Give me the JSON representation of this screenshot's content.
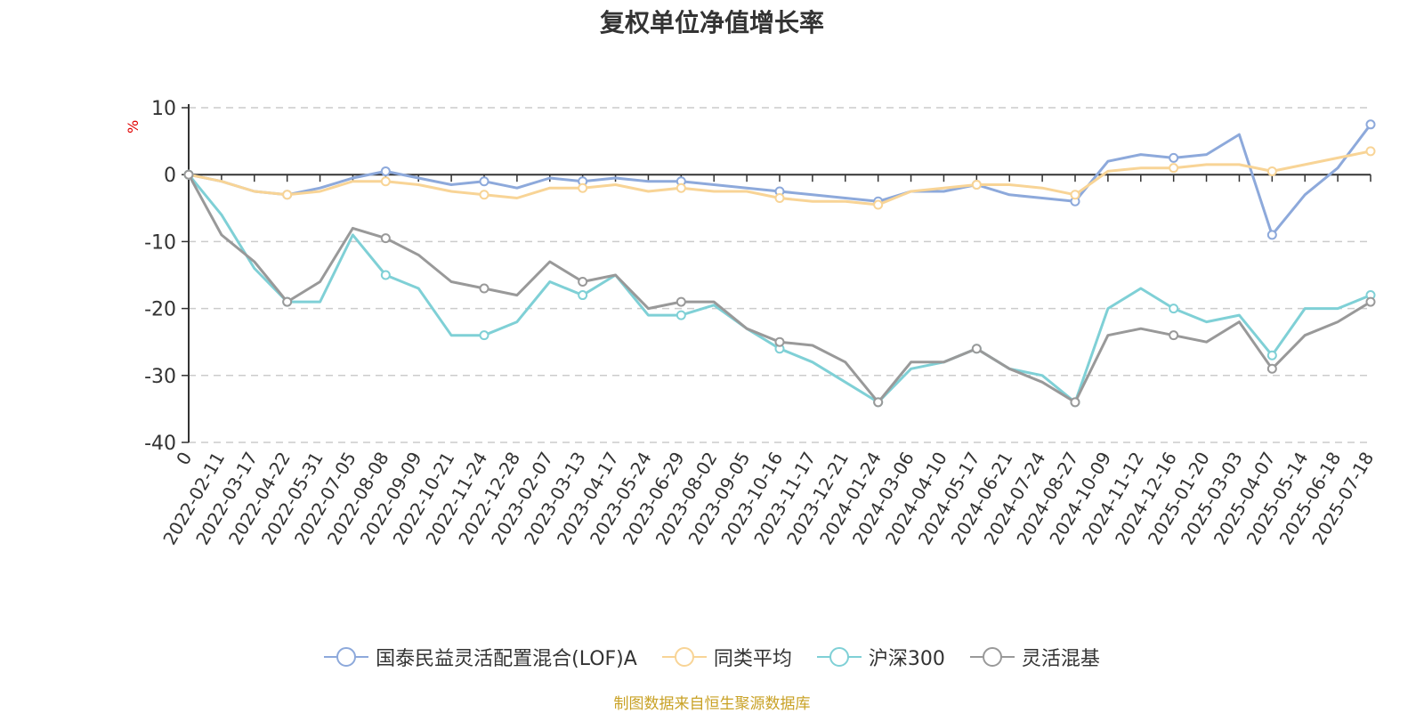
{
  "chart_data": {
    "type": "line",
    "title": "复权单位净值增长率",
    "ylabel": "%",
    "ylim": [
      -40,
      10
    ],
    "yticks": [
      10,
      0,
      -10,
      -20,
      -30,
      -40
    ],
    "grid": true,
    "legend_position": "bottom",
    "x_tick_labels": [
      "0",
      "2022-02-11",
      "2022-03-17",
      "2022-04-22",
      "2022-05-31",
      "2022-07-05",
      "2022-08-08",
      "2022-09-09",
      "2022-10-21",
      "2022-11-24",
      "2022-12-28",
      "2023-02-07",
      "2023-03-13",
      "2023-04-17",
      "2023-05-24",
      "2023-06-29",
      "2023-08-02",
      "2023-09-05",
      "2023-10-16",
      "2023-11-17",
      "2023-12-21",
      "2024-01-24",
      "2024-03-06",
      "2024-04-10",
      "2024-05-17",
      "2024-06-21",
      "2024-07-24",
      "2024-08-27",
      "2024-10-09",
      "2024-11-12",
      "2024-12-16",
      "2025-01-20",
      "2025-03-03",
      "2025-04-07",
      "2025-05-14",
      "2025-06-18",
      "2025-07-18"
    ],
    "series": [
      {
        "name": "国泰民益灵活配置混合(LOF)A",
        "color": "#8da9db",
        "values": [
          0,
          -1,
          -2.5,
          -3,
          -2,
          -0.5,
          0.5,
          -0.5,
          -1.5,
          -1,
          -2,
          -0.5,
          -1,
          -0.5,
          -1,
          -1,
          -1.5,
          -2,
          -2.5,
          -3,
          -3.5,
          -4,
          -2.5,
          -2.5,
          -1.5,
          -3,
          -3.5,
          -4,
          2,
          3,
          2.5,
          3,
          6,
          -9,
          -3,
          1,
          7.5
        ]
      },
      {
        "name": "同类平均",
        "color": "#f8d496",
        "values": [
          0,
          -1,
          -2.5,
          -3,
          -2.5,
          -1,
          -1,
          -1.5,
          -2.5,
          -3,
          -3.5,
          -2,
          -2,
          -1.5,
          -2.5,
          -2,
          -2.5,
          -2.5,
          -3.5,
          -4,
          -4,
          -4.5,
          -2.5,
          -2,
          -1.5,
          -1.5,
          -2,
          -3,
          0.5,
          1,
          1,
          1.5,
          1.5,
          0.5,
          1.5,
          2.5,
          3.5
        ]
      },
      {
        "name": "沪深300",
        "color": "#7fd0d6",
        "values": [
          0,
          -6,
          -14,
          -19,
          -19,
          -9,
          -15,
          -17,
          -24,
          -24,
          -22,
          -16,
          -18,
          -15,
          -21,
          -21,
          -19.5,
          -23,
          -26,
          -28,
          -31,
          -34,
          -29,
          -28,
          -26,
          -29,
          -30,
          -34,
          -20,
          -17,
          -20,
          -22,
          -21,
          -27,
          -20,
          -20,
          -18
        ]
      },
      {
        "name": "灵活混基",
        "color": "#999999",
        "values": [
          0,
          -9,
          -13,
          -19,
          -16,
          -8,
          -9.5,
          -12,
          -16,
          -17,
          -18,
          -13,
          -16,
          -15,
          -20,
          -19,
          -19,
          -23,
          -25,
          -25.5,
          -28,
          -34,
          -28,
          -28,
          -26,
          -29,
          -31,
          -34,
          -24,
          -23,
          -24,
          -25,
          -22,
          -29,
          -24,
          -22,
          -19
        ]
      }
    ]
  },
  "source_note": "制图数据来自恒生聚源数据库",
  "source_color": "#c9a227"
}
